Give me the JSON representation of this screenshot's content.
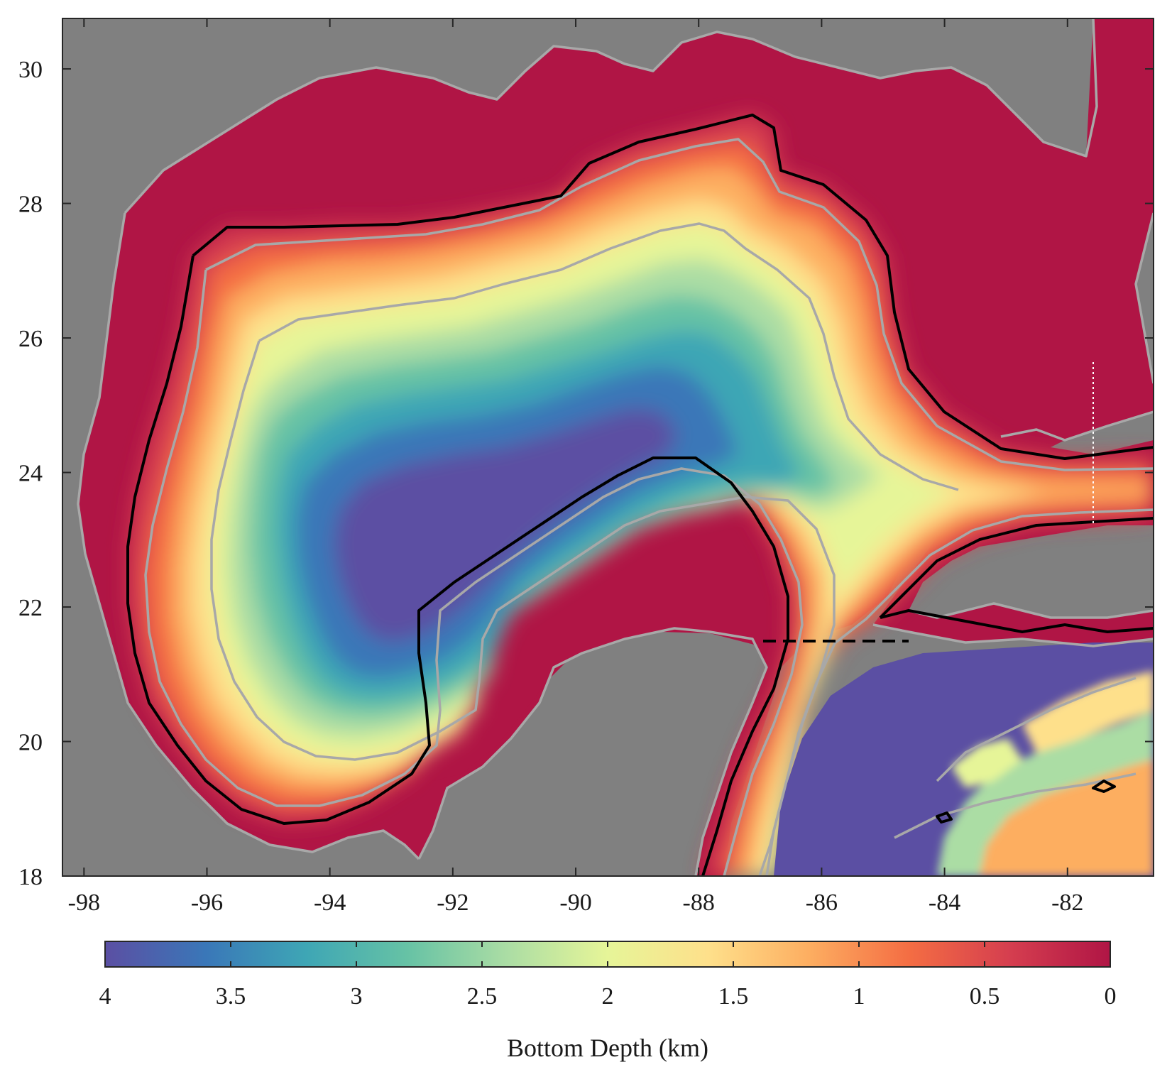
{
  "map": {
    "type": "bathymetry-map",
    "x_ticks": [
      "-98",
      "-96",
      "-94",
      "-92",
      "-90",
      "-88",
      "-86",
      "-84",
      "-82"
    ],
    "x_tick_values": [
      -98,
      -96,
      -94,
      -92,
      -90,
      -88,
      -86,
      -84,
      -82
    ],
    "y_ticks": [
      "30",
      "28",
      "26",
      "24",
      "22",
      "20",
      "18"
    ],
    "y_tick_values": [
      30,
      28,
      26,
      24,
      22,
      20,
      18
    ],
    "xlim": [
      -98.35,
      -80.6
    ],
    "ylim": [
      18,
      30.75
    ],
    "colors": {
      "land": "#808080",
      "shelf": "#b01545",
      "coastline": "#a8a8a8",
      "key_isobath": "#000000"
    }
  },
  "colorbar": {
    "title": "Bottom Depth (km)",
    "tick_labels": [
      "4",
      "3.5",
      "3",
      "2.5",
      "2",
      "1.5",
      "1",
      "0.5",
      "0"
    ],
    "tick_values": [
      4,
      3.5,
      3,
      2.5,
      2,
      1.5,
      1,
      0.5,
      0
    ],
    "range": [
      4,
      0
    ],
    "stops": [
      "#5b4fa3",
      "#3a77b8",
      "#3ea6b5",
      "#66c2a5",
      "#abdda4",
      "#e6f598",
      "#fee08b",
      "#fdae61",
      "#f46d43",
      "#d53e4f",
      "#b01545"
    ]
  }
}
